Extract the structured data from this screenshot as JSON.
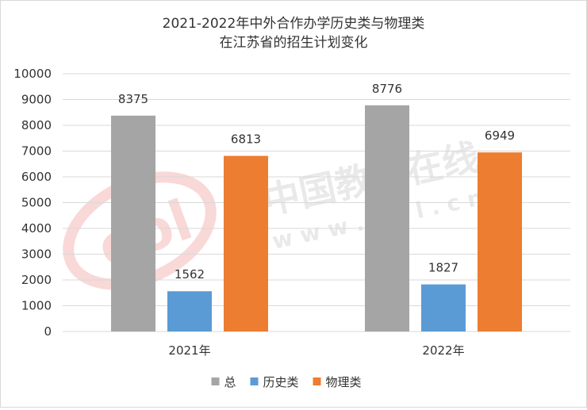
{
  "chart_data": {
    "type": "bar",
    "title_lines": [
      "2021-2022年中外合作办学历史类与物理类",
      "在江苏省的招生计划变化"
    ],
    "categories": [
      "2021年",
      "2022年"
    ],
    "series": [
      {
        "name": "总",
        "values": [
          8375,
          8776
        ],
        "color": "#a5a5a5"
      },
      {
        "name": "历史类",
        "values": [
          1562,
          1827
        ],
        "color": "#5b9bd5"
      },
      {
        "name": "物理类",
        "values": [
          6813,
          6949
        ],
        "color": "#ed7d31"
      }
    ],
    "ylim": [
      0,
      10000
    ],
    "yticks": [
      0,
      1000,
      2000,
      3000,
      4000,
      5000,
      6000,
      7000,
      8000,
      9000,
      10000
    ],
    "grid": true,
    "legend_position": "bottom"
  },
  "watermark": {
    "text_cn": "中国教育在线",
    "text_url": "w w w . e o l . c n",
    "logo_text": "eol"
  }
}
